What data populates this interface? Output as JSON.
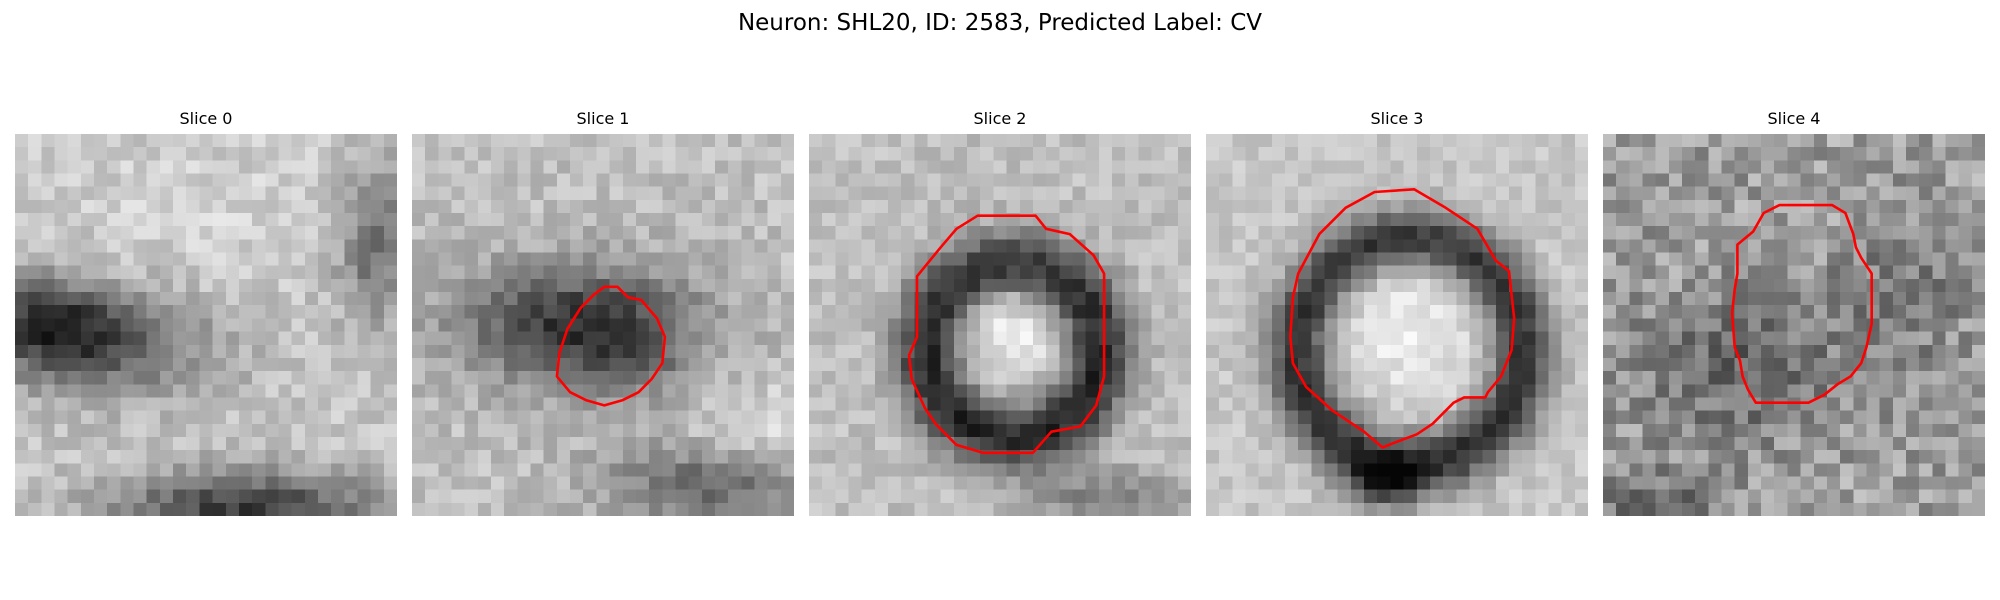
{
  "figure": {
    "title": "Neuron: SHL20, ID: 2583, Predicted Label: CV",
    "contour_color": "#ff0000",
    "colormap": "gray",
    "panels": [
      {
        "title": "Slice 0",
        "has_contour": false
      },
      {
        "title": "Slice 1",
        "has_contour": true
      },
      {
        "title": "Slice 2",
        "has_contour": true
      },
      {
        "title": "Slice 3",
        "has_contour": true
      },
      {
        "title": "Slice 4",
        "has_contour": true
      }
    ]
  }
}
